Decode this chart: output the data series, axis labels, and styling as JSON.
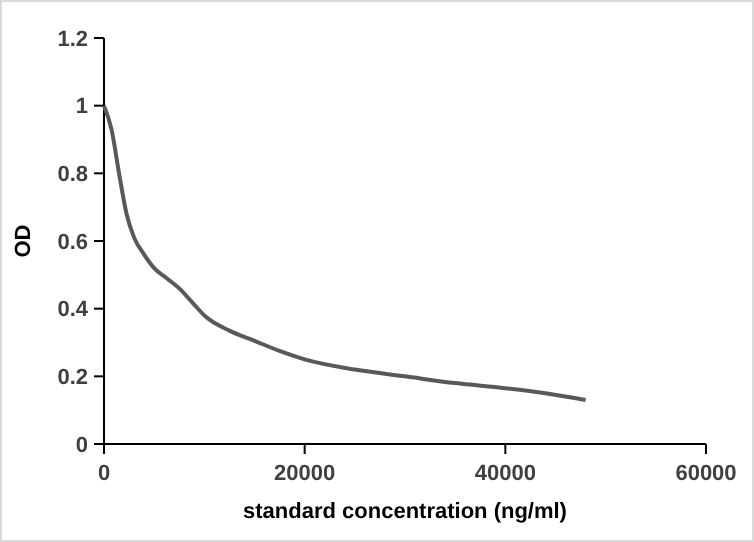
{
  "chart_data": {
    "type": "line",
    "xlabel": "standard concentration (ng/ml)",
    "ylabel": "OD",
    "x": [
      0,
      750,
      1500,
      2250,
      3000,
      4000,
      5000,
      6250,
      7500,
      8750,
      10000,
      12500,
      15000,
      17500,
      20000,
      25000,
      30000,
      35000,
      40000,
      44000,
      48000
    ],
    "series": [
      {
        "color": "#595959",
        "values": [
          1,
          0.93,
          0.8,
          0.68,
          0.61,
          0.56,
          0.52,
          0.49,
          0.46,
          0.42,
          0.38,
          0.335,
          0.305,
          0.275,
          0.25,
          0.22,
          0.2,
          0.18,
          0.165,
          0.15,
          0.13
        ]
      }
    ],
    "xlim": [
      0,
      60000
    ],
    "xticks": [
      0,
      20000,
      40000,
      60000
    ],
    "ylim": [
      0,
      1.2
    ],
    "yticks": [
      0,
      0.2,
      0.4,
      0.6,
      0.8,
      1,
      1.2
    ],
    "grid": false,
    "marker": "none",
    "line_style": "solid"
  }
}
